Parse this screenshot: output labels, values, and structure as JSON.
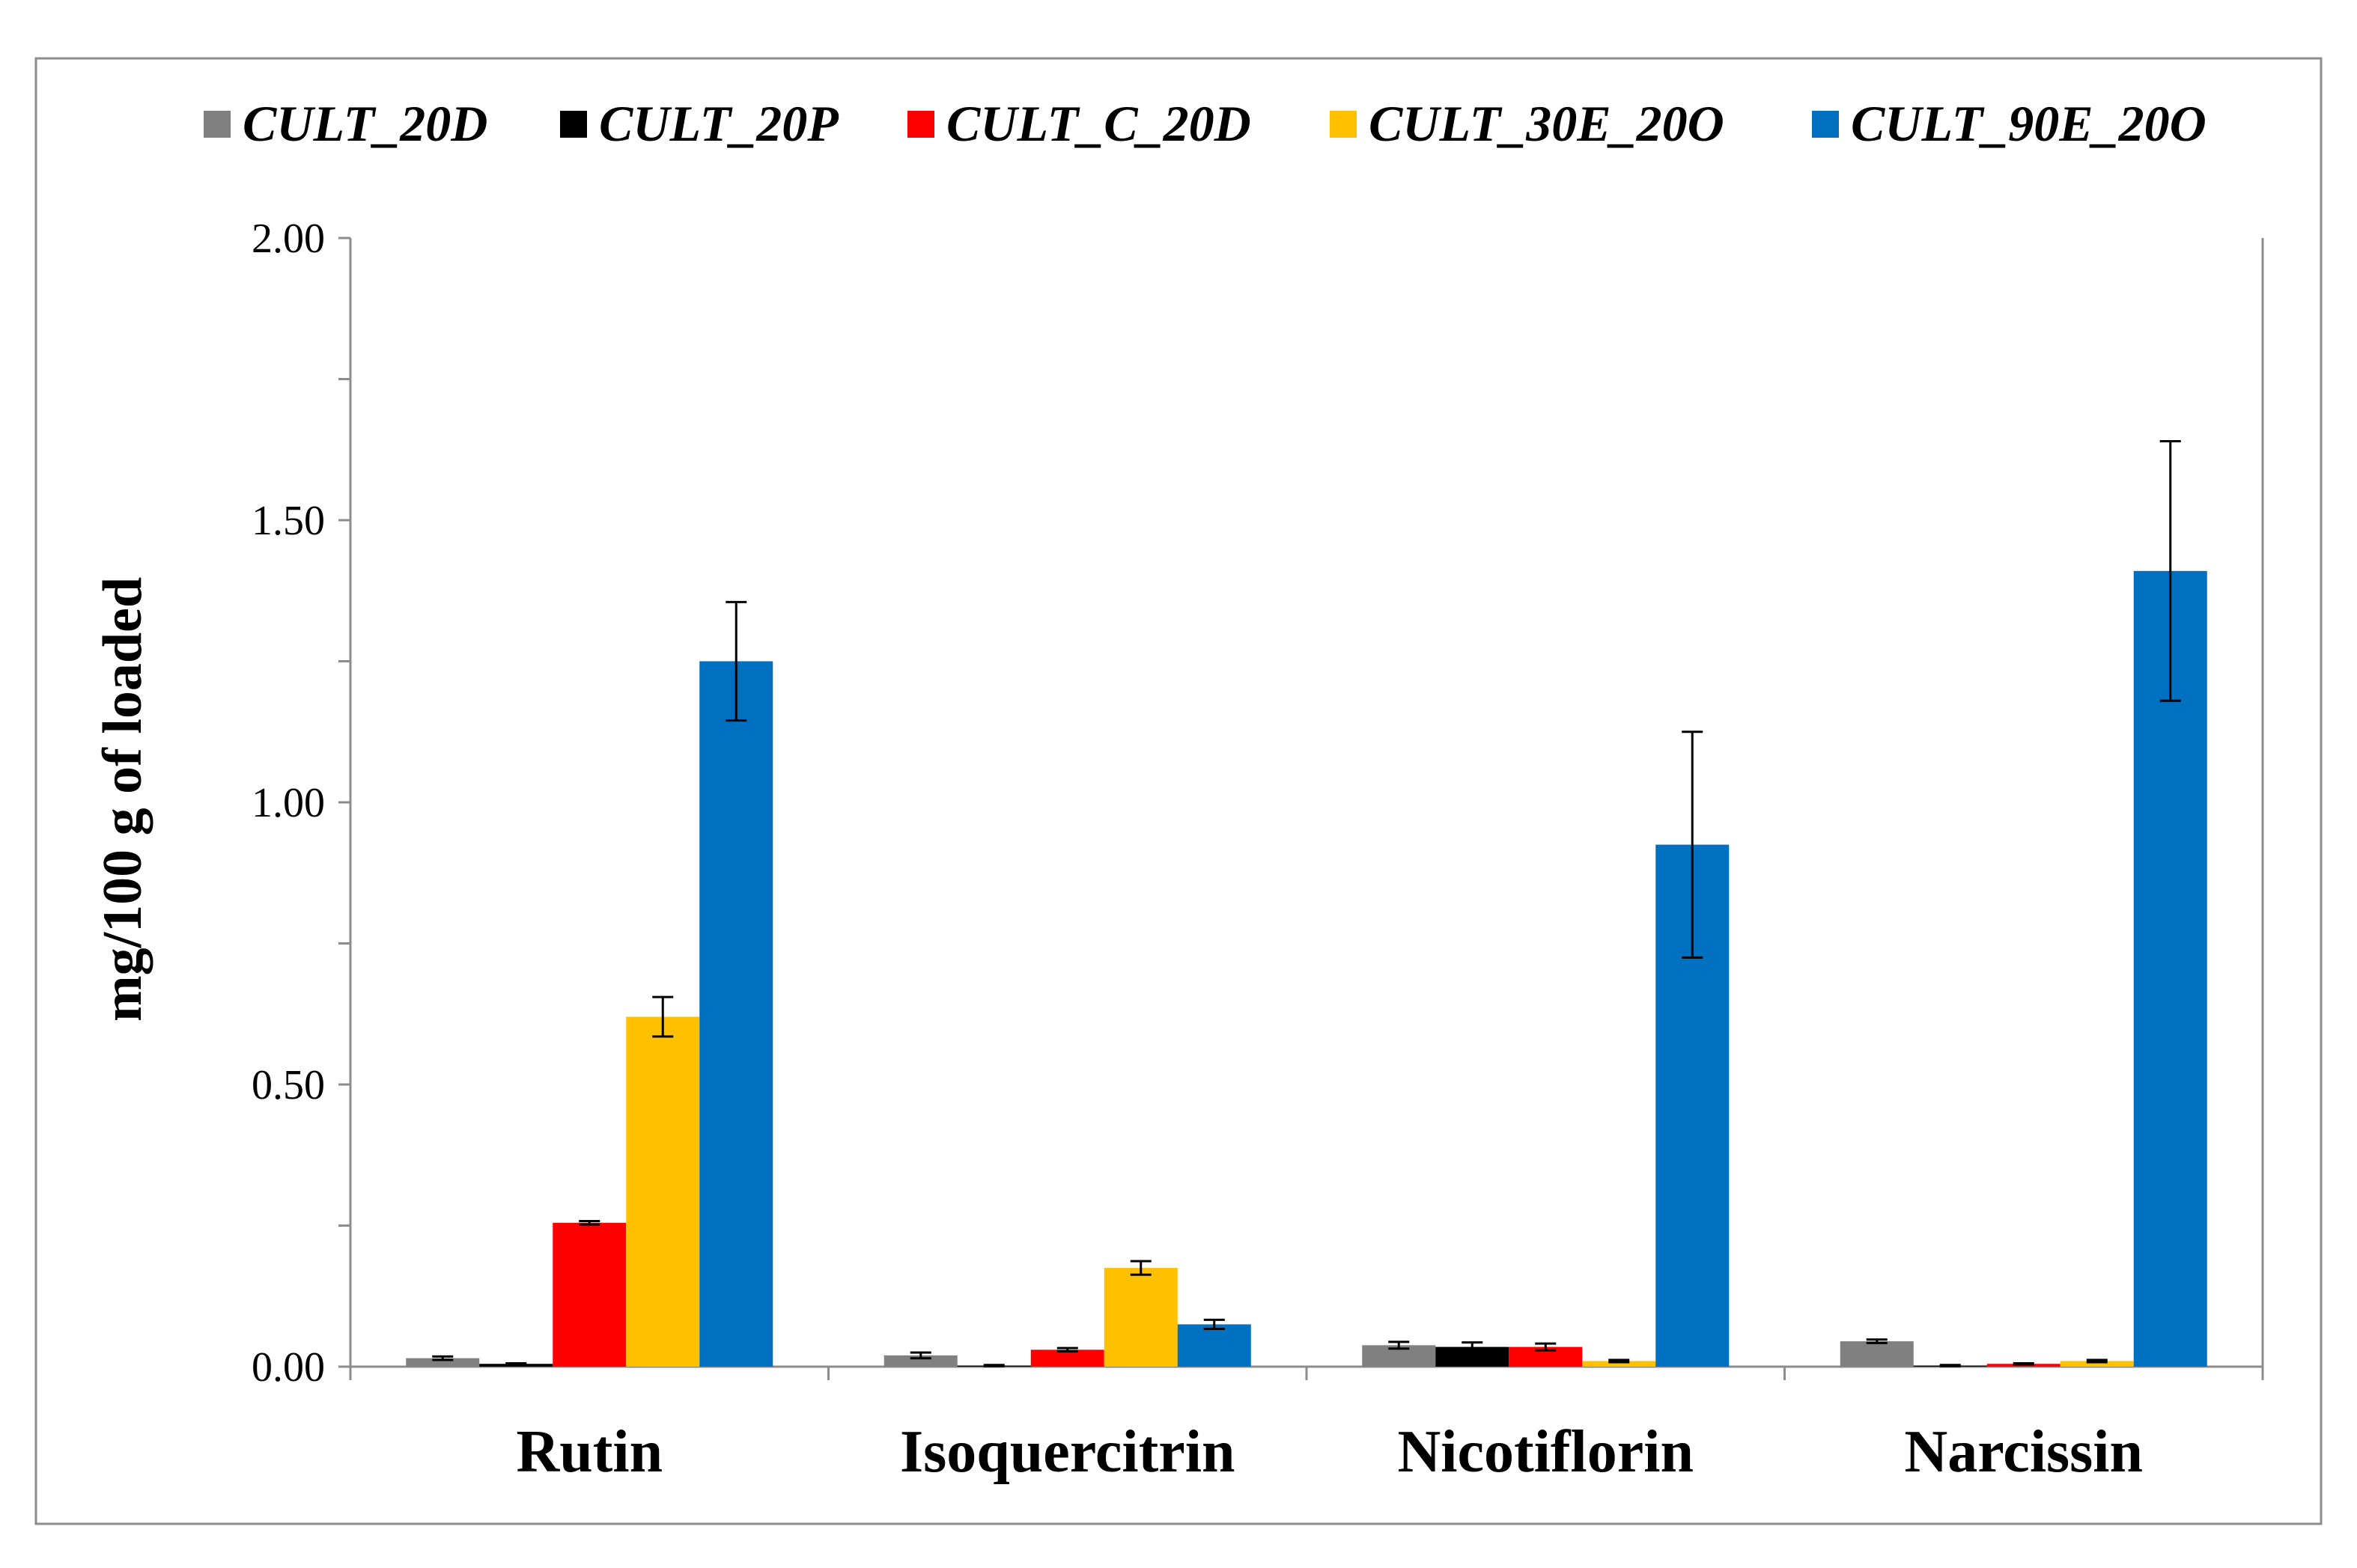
{
  "chart_data": {
    "type": "bar",
    "title": "",
    "xlabel": "",
    "ylabel": "mg/100 g of loaded",
    "ylim": [
      0,
      2.0
    ],
    "yticks": [
      "0.00",
      "0.50",
      "1.00",
      "1.50",
      "2.00"
    ],
    "categories": [
      "Rutin",
      "Isoquercitrin",
      "Nicotiflorin",
      "Narcissin"
    ],
    "legend_position": "top",
    "grid": false,
    "series": [
      {
        "name": "CULT_20D",
        "color": "#808080",
        "values": [
          0.015,
          0.02,
          0.038,
          0.045
        ],
        "errors": [
          0.003,
          0.005,
          0.006,
          0.003
        ]
      },
      {
        "name": "CULT_20P",
        "color": "#000000",
        "values": [
          0.005,
          0.002,
          0.035,
          0.002
        ],
        "errors": [
          0.001,
          0.001,
          0.008,
          0.001
        ]
      },
      {
        "name": "CULT_C_20D",
        "color": "#ff0000",
        "values": [
          0.255,
          0.03,
          0.035,
          0.005
        ],
        "errors": [
          0.003,
          0.003,
          0.006,
          0.001
        ]
      },
      {
        "name": "CULT_30E_20O",
        "color": "#ffc000",
        "values": [
          0.62,
          0.175,
          0.01,
          0.01
        ],
        "errors": [
          0.035,
          0.012,
          0.002,
          0.002
        ]
      },
      {
        "name": "CULT_90E_20O",
        "color": "#0070c0",
        "values": [
          1.25,
          0.075,
          0.925,
          1.41
        ],
        "errors": [
          0.105,
          0.008,
          0.2,
          0.23
        ]
      }
    ]
  }
}
